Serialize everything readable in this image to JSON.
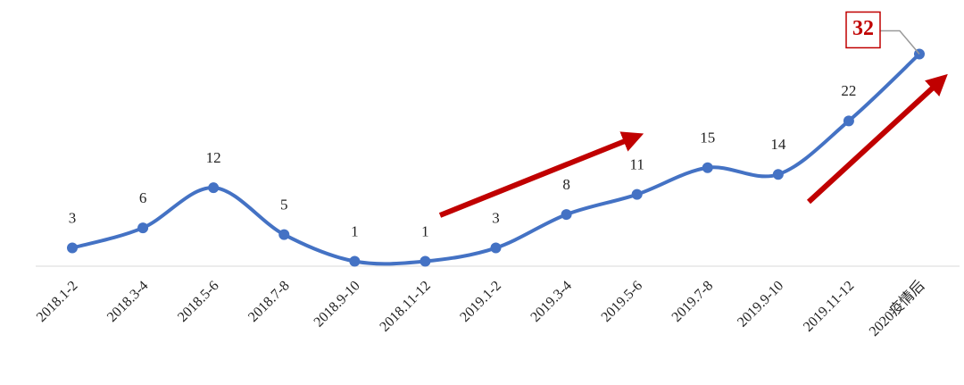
{
  "chart_data": {
    "type": "line",
    "categories": [
      "2018.1-2",
      "2018.3-4",
      "2018.5-6",
      "2018.7-8",
      "2018.9-10",
      "2018.11-12",
      "2019.1-2",
      "2019.3-4",
      "2019.5-6",
      "2019.7-8",
      "2019.9-10",
      "2019.11-12",
      "2020疫情后"
    ],
    "values": [
      3,
      6,
      12,
      5,
      1,
      1,
      3,
      8,
      11,
      15,
      14,
      22,
      32
    ],
    "color": "#4472c4",
    "ylim": [
      0,
      33
    ]
  }
}
